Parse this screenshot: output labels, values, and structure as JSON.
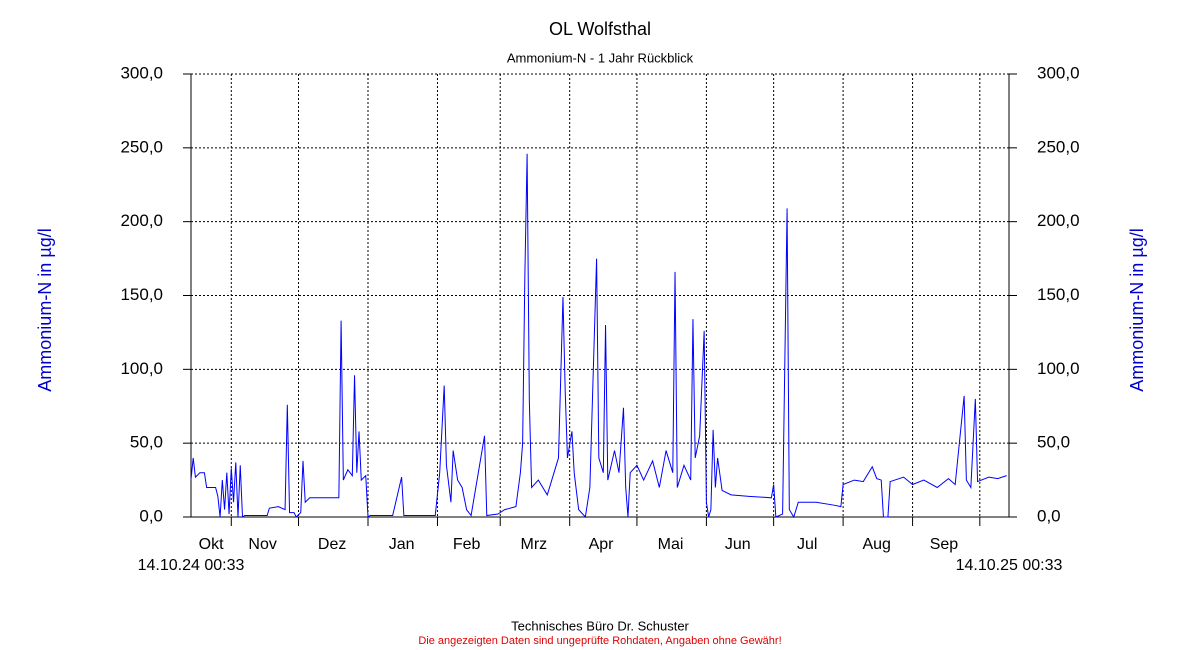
{
  "chart_data": {
    "type": "line",
    "title": "OL Wolfsthal",
    "subtitle": "Ammonium-N - 1 Jahr Rückblick",
    "y_label": "Ammonium-N in µg/l",
    "footer": "Technisches Büro Dr. Schuster",
    "disclaimer": "Die angezeigten Daten sind ungeprüfte Rohdaten, Angaben ohne Gewähr!",
    "color": "#0000ff",
    "grid": true,
    "xlim": [
      "14.10.24 00:33",
      "14.10.25 00:33"
    ],
    "month_grid": [
      "2024-11-01",
      "2024-12-01",
      "2025-01-01",
      "2025-02-01",
      "2025-03-01",
      "2025-04-01",
      "2025-05-01",
      "2025-06-01",
      "2025-07-01",
      "2025-08-01",
      "2025-09-01",
      "2025-10-01"
    ],
    "xticks": [
      {
        "value": "2024-10-23",
        "label": "Okt"
      },
      {
        "value": "2024-11-15",
        "label": "Nov"
      },
      {
        "value": "2024-12-16",
        "label": "Dez"
      },
      {
        "value": "2025-01-16",
        "label": "Jan"
      },
      {
        "value": "2025-02-14",
        "label": "Feb"
      },
      {
        "value": "2025-03-16",
        "label": "Mrz"
      },
      {
        "value": "2025-04-15",
        "label": "Apr"
      },
      {
        "value": "2025-05-16",
        "label": "Mai"
      },
      {
        "value": "2025-06-15",
        "label": "Jun"
      },
      {
        "value": "2025-07-16",
        "label": "Jul"
      },
      {
        "value": "2025-08-16",
        "label": "Aug"
      },
      {
        "value": "2025-09-15",
        "label": "Sep"
      }
    ],
    "ylim": [
      0,
      300
    ],
    "yticks": [
      {
        "value": 0,
        "label": "0,0"
      },
      {
        "value": 50,
        "label": "50,0"
      },
      {
        "value": 100,
        "label": "100,0"
      },
      {
        "value": 150,
        "label": "150,0"
      },
      {
        "value": 200,
        "label": "200,0"
      },
      {
        "value": 250,
        "label": "250,0"
      },
      {
        "value": 300,
        "label": "300,0"
      }
    ],
    "x": [
      "2024-10-14",
      "2024-10-15",
      "2024-10-16",
      "2024-10-18",
      "2024-10-20",
      "2024-10-21",
      "2024-10-25",
      "2024-10-26",
      "2024-10-27",
      "2024-10-28",
      "2024-10-29",
      "2024-10-30",
      "2024-10-31",
      "2024-11-01",
      "2024-11-02",
      "2024-11-03",
      "2024-11-04",
      "2024-11-05",
      "2024-11-06",
      "2024-11-07",
      "2024-11-10",
      "2024-11-17",
      "2024-11-18",
      "2024-11-22",
      "2024-11-25",
      "2024-11-26",
      "2024-11-27",
      "2024-11-29",
      "2024-11-30",
      "2024-12-02",
      "2024-12-03",
      "2024-12-04",
      "2024-12-06",
      "2024-12-12",
      "2024-12-19",
      "2024-12-20",
      "2024-12-21",
      "2024-12-23",
      "2024-12-25",
      "2024-12-26",
      "2024-12-27",
      "2024-12-28",
      "2024-12-29",
      "2024-12-31",
      "2025-01-01",
      "2025-01-02",
      "2025-01-12",
      "2025-01-16",
      "2025-01-17",
      "2025-01-31",
      "2025-02-02",
      "2025-02-04",
      "2025-02-05",
      "2025-02-07",
      "2025-02-08",
      "2025-02-10",
      "2025-02-12",
      "2025-02-14",
      "2025-02-16",
      "2025-02-22",
      "2025-02-23",
      "2025-02-28",
      "2025-03-03",
      "2025-03-08",
      "2025-03-10",
      "2025-03-11",
      "2025-03-12",
      "2025-03-13",
      "2025-03-14",
      "2025-03-15",
      "2025-03-18",
      "2025-03-22",
      "2025-03-25",
      "2025-03-27",
      "2025-03-29",
      "2025-03-30",
      "2025-03-31",
      "2025-04-02",
      "2025-04-03",
      "2025-04-05",
      "2025-04-08",
      "2025-04-10",
      "2025-04-13",
      "2025-04-14",
      "2025-04-16",
      "2025-04-17",
      "2025-04-18",
      "2025-04-21",
      "2025-04-23",
      "2025-04-25",
      "2025-04-26",
      "2025-04-27",
      "2025-04-28",
      "2025-05-01",
      "2025-05-04",
      "2025-05-08",
      "2025-05-11",
      "2025-05-14",
      "2025-05-17",
      "2025-05-18",
      "2025-05-19",
      "2025-05-22",
      "2025-05-25",
      "2025-05-26",
      "2025-05-27",
      "2025-05-29",
      "2025-05-31",
      "2025-06-01",
      "2025-06-02",
      "2025-06-03",
      "2025-06-04",
      "2025-06-05",
      "2025-06-06",
      "2025-06-08",
      "2025-06-12",
      "2025-06-20",
      "2025-06-30",
      "2025-07-01",
      "2025-07-02",
      "2025-07-05",
      "2025-07-07",
      "2025-07-08",
      "2025-07-10",
      "2025-07-12",
      "2025-07-20",
      "2025-07-28",
      "2025-07-31",
      "2025-08-01",
      "2025-08-06",
      "2025-08-10",
      "2025-08-14",
      "2025-08-16",
      "2025-08-18",
      "2025-08-19",
      "2025-08-21",
      "2025-08-22",
      "2025-08-28",
      "2025-09-01",
      "2025-09-06",
      "2025-09-12",
      "2025-09-17",
      "2025-09-20",
      "2025-09-24",
      "2025-09-25",
      "2025-09-27",
      "2025-09-29",
      "2025-09-30",
      "2025-10-05",
      "2025-10-09",
      "2025-10-13"
    ],
    "values": [
      25,
      40,
      27,
      30,
      30,
      20,
      20,
      14,
      0,
      25,
      5,
      30,
      2,
      33,
      10,
      37,
      0,
      35,
      0,
      1,
      1,
      1,
      6,
      7,
      5,
      76,
      3,
      3,
      0,
      3,
      38,
      10,
      13,
      13,
      13,
      133,
      25,
      32,
      28,
      96,
      30,
      58,
      25,
      28,
      0,
      1,
      1,
      27,
      1,
      1,
      30,
      89,
      35,
      10,
      45,
      25,
      20,
      5,
      1,
      55,
      1,
      2,
      5,
      7,
      30,
      50,
      164,
      246,
      78,
      20,
      25,
      15,
      30,
      40,
      149,
      85,
      40,
      58,
      30,
      5,
      0,
      20,
      175,
      40,
      30,
      130,
      25,
      45,
      30,
      74,
      20,
      0,
      30,
      35,
      25,
      38,
      20,
      45,
      30,
      166,
      20,
      35,
      25,
      134,
      40,
      55,
      126,
      10,
      0,
      5,
      59,
      20,
      40,
      18,
      15,
      14,
      13,
      22,
      0,
      2,
      209,
      5,
      0,
      10,
      10,
      8,
      7,
      22,
      25,
      24,
      34,
      26,
      25,
      0,
      0,
      24,
      27,
      22,
      25,
      20,
      26,
      22,
      82,
      25,
      20,
      80,
      24,
      27,
      26,
      28
    ]
  }
}
